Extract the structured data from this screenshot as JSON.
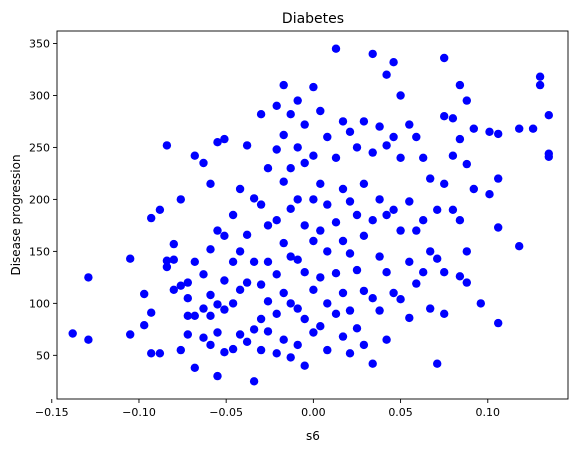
{
  "chart_data": {
    "type": "scatter",
    "title": "Diabetes",
    "xlabel": "s6",
    "ylabel": "Disease progression",
    "xlim": [
      -0.147,
      0.146
    ],
    "ylim": [
      8,
      362
    ],
    "x_ticks": [
      -0.15,
      -0.1,
      -0.05,
      0.0,
      0.05,
      0.1
    ],
    "x_tick_labels": [
      "−0.15",
      "−0.10",
      "−0.05",
      "0.00",
      "0.05",
      "0.10"
    ],
    "y_ticks": [
      50,
      100,
      150,
      200,
      250,
      300,
      350
    ],
    "y_tick_labels": [
      "50",
      "100",
      "150",
      "200",
      "250",
      "300",
      "350"
    ],
    "grid": false,
    "legend": "none",
    "marker_color": "#0000ff",
    "series": [
      {
        "points": [
          [
            -0.138,
            71
          ],
          [
            -0.129,
            125
          ],
          [
            -0.129,
            65
          ],
          [
            -0.105,
            143
          ],
          [
            -0.105,
            70
          ],
          [
            -0.097,
            109
          ],
          [
            -0.097,
            79
          ],
          [
            -0.093,
            182
          ],
          [
            -0.093,
            91
          ],
          [
            -0.093,
            52
          ],
          [
            -0.088,
            190
          ],
          [
            -0.088,
            52
          ],
          [
            -0.084,
            252
          ],
          [
            -0.084,
            141
          ],
          [
            -0.084,
            135
          ],
          [
            -0.08,
            157
          ],
          [
            -0.08,
            142
          ],
          [
            -0.08,
            113
          ],
          [
            -0.076,
            200
          ],
          [
            -0.076,
            117
          ],
          [
            -0.076,
            55
          ],
          [
            -0.072,
            120
          ],
          [
            -0.072,
            105
          ],
          [
            -0.072,
            88
          ],
          [
            -0.072,
            70
          ],
          [
            -0.068,
            242
          ],
          [
            -0.068,
            140
          ],
          [
            -0.068,
            88
          ],
          [
            -0.068,
            38
          ],
          [
            -0.063,
            235
          ],
          [
            -0.063,
            128
          ],
          [
            -0.063,
            95
          ],
          [
            -0.063,
            67
          ],
          [
            -0.059,
            215
          ],
          [
            -0.059,
            152
          ],
          [
            -0.059,
            108
          ],
          [
            -0.059,
            88
          ],
          [
            -0.059,
            60
          ],
          [
            -0.055,
            255
          ],
          [
            -0.055,
            170
          ],
          [
            -0.055,
            99
          ],
          [
            -0.055,
            72
          ],
          [
            -0.055,
            30
          ],
          [
            -0.051,
            258
          ],
          [
            -0.051,
            165
          ],
          [
            -0.051,
            122
          ],
          [
            -0.051,
            94
          ],
          [
            -0.051,
            53
          ],
          [
            -0.046,
            185
          ],
          [
            -0.046,
            140
          ],
          [
            -0.046,
            100
          ],
          [
            -0.046,
            56
          ],
          [
            -0.042,
            210
          ],
          [
            -0.042,
            150
          ],
          [
            -0.042,
            113
          ],
          [
            -0.042,
            70
          ],
          [
            -0.038,
            252
          ],
          [
            -0.038,
            166
          ],
          [
            -0.038,
            120
          ],
          [
            -0.038,
            63
          ],
          [
            -0.034,
            201
          ],
          [
            -0.034,
            140
          ],
          [
            -0.034,
            75
          ],
          [
            -0.034,
            25
          ],
          [
            -0.03,
            282
          ],
          [
            -0.03,
            195
          ],
          [
            -0.03,
            118
          ],
          [
            -0.03,
            85
          ],
          [
            -0.03,
            55
          ],
          [
            -0.026,
            230
          ],
          [
            -0.026,
            175
          ],
          [
            -0.026,
            140
          ],
          [
            -0.026,
            102
          ],
          [
            -0.026,
            73
          ],
          [
            -0.021,
            290
          ],
          [
            -0.021,
            248
          ],
          [
            -0.021,
            180
          ],
          [
            -0.021,
            128
          ],
          [
            -0.021,
            90
          ],
          [
            -0.021,
            52
          ],
          [
            -0.017,
            310
          ],
          [
            -0.017,
            262
          ],
          [
            -0.017,
            217
          ],
          [
            -0.017,
            158
          ],
          [
            -0.017,
            110
          ],
          [
            -0.017,
            65
          ],
          [
            -0.013,
            282
          ],
          [
            -0.013,
            230
          ],
          [
            -0.013,
            191
          ],
          [
            -0.013,
            145
          ],
          [
            -0.013,
            100
          ],
          [
            -0.013,
            48
          ],
          [
            -0.009,
            295
          ],
          [
            -0.009,
            250
          ],
          [
            -0.009,
            200
          ],
          [
            -0.009,
            142
          ],
          [
            -0.009,
            95
          ],
          [
            -0.009,
            60
          ],
          [
            -0.005,
            272
          ],
          [
            -0.005,
            235
          ],
          [
            -0.005,
            175
          ],
          [
            -0.005,
            130
          ],
          [
            -0.005,
            85
          ],
          [
            -0.005,
            40
          ],
          [
            0.0,
            308
          ],
          [
            0.0,
            242
          ],
          [
            0.0,
            200
          ],
          [
            0.0,
            160
          ],
          [
            0.0,
            113
          ],
          [
            0.0,
            72
          ],
          [
            0.004,
            285
          ],
          [
            0.004,
            215
          ],
          [
            0.004,
            170
          ],
          [
            0.004,
            125
          ],
          [
            0.004,
            78
          ],
          [
            0.008,
            260
          ],
          [
            0.008,
            195
          ],
          [
            0.008,
            150
          ],
          [
            0.008,
            100
          ],
          [
            0.008,
            55
          ],
          [
            0.013,
            345
          ],
          [
            0.013,
            240
          ],
          [
            0.013,
            178
          ],
          [
            0.013,
            129
          ],
          [
            0.013,
            90
          ],
          [
            0.017,
            275
          ],
          [
            0.017,
            210
          ],
          [
            0.017,
            160
          ],
          [
            0.017,
            110
          ],
          [
            0.017,
            68
          ],
          [
            0.021,
            265
          ],
          [
            0.021,
            198
          ],
          [
            0.021,
            148
          ],
          [
            0.021,
            93
          ],
          [
            0.021,
            52
          ],
          [
            0.025,
            250
          ],
          [
            0.025,
            185
          ],
          [
            0.025,
            132
          ],
          [
            0.025,
            76
          ],
          [
            0.029,
            275
          ],
          [
            0.029,
            215
          ],
          [
            0.029,
            165
          ],
          [
            0.029,
            112
          ],
          [
            0.029,
            60
          ],
          [
            0.034,
            340
          ],
          [
            0.034,
            245
          ],
          [
            0.034,
            180
          ],
          [
            0.034,
            105
          ],
          [
            0.034,
            42
          ],
          [
            0.038,
            270
          ],
          [
            0.038,
            200
          ],
          [
            0.038,
            145
          ],
          [
            0.038,
            93
          ],
          [
            0.042,
            320
          ],
          [
            0.042,
            252
          ],
          [
            0.042,
            185
          ],
          [
            0.042,
            130
          ],
          [
            0.042,
            65
          ],
          [
            0.046,
            332
          ],
          [
            0.046,
            260
          ],
          [
            0.046,
            190
          ],
          [
            0.046,
            110
          ],
          [
            0.05,
            300
          ],
          [
            0.05,
            240
          ],
          [
            0.05,
            170
          ],
          [
            0.05,
            104
          ],
          [
            0.055,
            272
          ],
          [
            0.055,
            198
          ],
          [
            0.055,
            140
          ],
          [
            0.055,
            86
          ],
          [
            0.059,
            260
          ],
          [
            0.059,
            170
          ],
          [
            0.059,
            119
          ],
          [
            0.063,
            240
          ],
          [
            0.063,
            180
          ],
          [
            0.063,
            130
          ],
          [
            0.067,
            220
          ],
          [
            0.067,
            150
          ],
          [
            0.067,
            95
          ],
          [
            0.071,
            190
          ],
          [
            0.071,
            143
          ],
          [
            0.071,
            42
          ],
          [
            0.075,
            336
          ],
          [
            0.075,
            280
          ],
          [
            0.075,
            215
          ],
          [
            0.075,
            130
          ],
          [
            0.075,
            90
          ],
          [
            0.08,
            278
          ],
          [
            0.08,
            242
          ],
          [
            0.08,
            190
          ],
          [
            0.084,
            310
          ],
          [
            0.084,
            258
          ],
          [
            0.084,
            180
          ],
          [
            0.084,
            126
          ],
          [
            0.088,
            295
          ],
          [
            0.088,
            234
          ],
          [
            0.088,
            150
          ],
          [
            0.088,
            120
          ],
          [
            0.092,
            268
          ],
          [
            0.092,
            210
          ],
          [
            0.096,
            100
          ],
          [
            0.101,
            265
          ],
          [
            0.101,
            205
          ],
          [
            0.106,
            263
          ],
          [
            0.106,
            220
          ],
          [
            0.106,
            173
          ],
          [
            0.106,
            81
          ],
          [
            0.118,
            268
          ],
          [
            0.118,
            155
          ],
          [
            0.126,
            268
          ],
          [
            0.13,
            318
          ],
          [
            0.13,
            310
          ],
          [
            0.135,
            281
          ],
          [
            0.135,
            244
          ],
          [
            0.135,
            241
          ]
        ]
      }
    ]
  }
}
